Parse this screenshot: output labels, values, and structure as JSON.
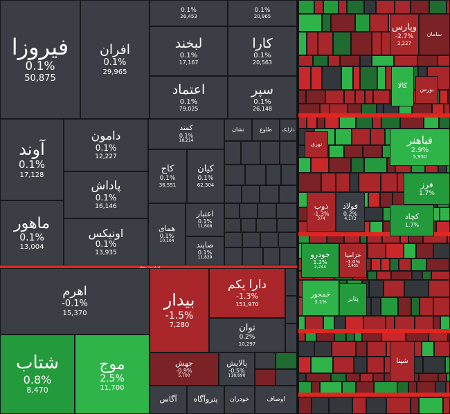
{
  "colors": {
    "neutral": "#3b3f45",
    "neutral_dark": "#33373c",
    "green_strong": "#2fb44a",
    "green": "#239a3c",
    "green_dim": "#1f6b30",
    "red_strong": "#c8282a",
    "red": "#a9272a",
    "red_dim": "#7a2226",
    "sector_bar_red": "#e0261f"
  },
  "chart_data": {
    "type": "treemap",
    "section_label_bottom": "ای اف تی - سهام",
    "tiles": [
      {
        "name": "فیروزا",
        "change": "0.1%",
        "value": "50,875",
        "tone": "neutral"
      },
      {
        "name": "افران",
        "change": "0.1%",
        "value": "29,965",
        "tone": "neutral"
      },
      {
        "name": "",
        "change": "0.1%",
        "value": "26,453",
        "tone": "neutral"
      },
      {
        "name": "",
        "change": "0.1%",
        "value": "20,965",
        "tone": "neutral"
      },
      {
        "name": "لبخند",
        "change": "0.1%",
        "value": "17,167",
        "tone": "neutral"
      },
      {
        "name": "کارا",
        "change": "0.1%",
        "value": "20,563",
        "tone": "neutral"
      },
      {
        "name": "اعتماد",
        "change": "0.1%",
        "value": "79,025",
        "tone": "neutral"
      },
      {
        "name": "سپر",
        "change": "0.1%",
        "value": "26,148",
        "tone": "neutral"
      },
      {
        "name": "آوند",
        "change": "0.1%",
        "value": "17,128",
        "tone": "neutral"
      },
      {
        "name": "دامون",
        "change": "0.1%",
        "value": "12,227",
        "tone": "neutral"
      },
      {
        "name": "کمند",
        "change": "0.1%",
        "value": "18,214",
        "tone": "neutral"
      },
      {
        "name": "نشان",
        "change": "",
        "value": "",
        "tone": "neutral"
      },
      {
        "name": "طلوع",
        "change": "",
        "value": "",
        "tone": "neutral"
      },
      {
        "name": "دارایک",
        "change": "",
        "value": "",
        "tone": "neutral"
      },
      {
        "name": "پاداش",
        "change": "0.1%",
        "value": "16,146",
        "tone": "neutral"
      },
      {
        "name": "کاج",
        "change": "0.1%",
        "value": "36,551",
        "tone": "neutral"
      },
      {
        "name": "کیان",
        "change": "0.1%",
        "value": "62,304",
        "tone": "neutral"
      },
      {
        "name": "ماهور",
        "change": "0.1%",
        "value": "13,004",
        "tone": "neutral"
      },
      {
        "name": "اونیکس",
        "change": "0.1%",
        "value": "13,935",
        "tone": "neutral"
      },
      {
        "name": "همای",
        "change": "0.1%",
        "value": "10,104",
        "tone": "neutral"
      },
      {
        "name": "اعتبار",
        "change": "0.1%",
        "value": "11,608",
        "tone": "neutral"
      },
      {
        "name": "صایند",
        "change": "0.1%",
        "value": "11,829",
        "tone": "neutral"
      },
      {
        "name": "اهرم",
        "change": "-0.1%",
        "value": "15,370",
        "tone": "neutral"
      },
      {
        "name": "بیدار",
        "change": "-1.5%",
        "value": "7,280",
        "tone": "red"
      },
      {
        "name": "دارا یکم",
        "change": "-1.3%",
        "value": "151,970",
        "tone": "red"
      },
      {
        "name": "توان",
        "change": "0.2%",
        "value": "10,297",
        "tone": "neutral"
      },
      {
        "name": "شتاب",
        "change": "0.8%",
        "value": "8,470",
        "tone": "green"
      },
      {
        "name": "موج",
        "change": "2.5%",
        "value": "11,700",
        "tone": "green_strong"
      },
      {
        "name": "جهش",
        "change": "-0.9%",
        "value": "5,700",
        "tone": "red_dim"
      },
      {
        "name": "پالایش",
        "change": "-0.5%",
        "value": "118,690",
        "tone": "neutral"
      },
      {
        "name": "آگاس",
        "change": "",
        "value": "",
        "tone": "neutral"
      },
      {
        "name": "پتروآگاه",
        "change": "",
        "value": "",
        "tone": "neutral"
      },
      {
        "name": "خودران",
        "change": "",
        "value": "",
        "tone": "neutral"
      },
      {
        "name": "اوصاف",
        "change": "",
        "value": "",
        "tone": "neutral"
      },
      {
        "name": "وپارس",
        "change": "-2.7%",
        "value": "2,227",
        "tone": "red"
      },
      {
        "name": "سامان",
        "change": "",
        "value": "",
        "tone": "red_dim"
      },
      {
        "name": "فباهنر",
        "change": "2.9%",
        "value": "5,950",
        "tone": "green_strong"
      },
      {
        "name": "فرز",
        "change": "1.7%",
        "value": "",
        "tone": "green"
      },
      {
        "name": "کچاد",
        "change": "1.7%",
        "value": "",
        "tone": "green"
      },
      {
        "name": "فولاد",
        "change": "0.2%",
        "value": "4,173",
        "tone": "neutral"
      },
      {
        "name": "ذوب",
        "change": "-1.3%",
        "value": "374",
        "tone": "red"
      },
      {
        "name": "خودرو",
        "change": "1.2%",
        "value": "2,244",
        "tone": "green"
      },
      {
        "name": "خزامیا",
        "change": "-1.0%",
        "value": "2,405",
        "tone": "red"
      },
      {
        "name": "خمحور",
        "change": "3.1%",
        "value": "",
        "tone": "green_strong"
      },
      {
        "name": "پتاير",
        "change": "",
        "value": "",
        "tone": "green"
      },
      {
        "name": "شپنا",
        "change": "",
        "value": "",
        "tone": "red"
      },
      {
        "name": "کالا",
        "change": "",
        "value": "",
        "tone": "green_strong"
      },
      {
        "name": "بورس",
        "change": "",
        "value": "",
        "tone": "red"
      },
      {
        "name": "نوری",
        "change": "",
        "value": "",
        "tone": "red"
      }
    ]
  }
}
